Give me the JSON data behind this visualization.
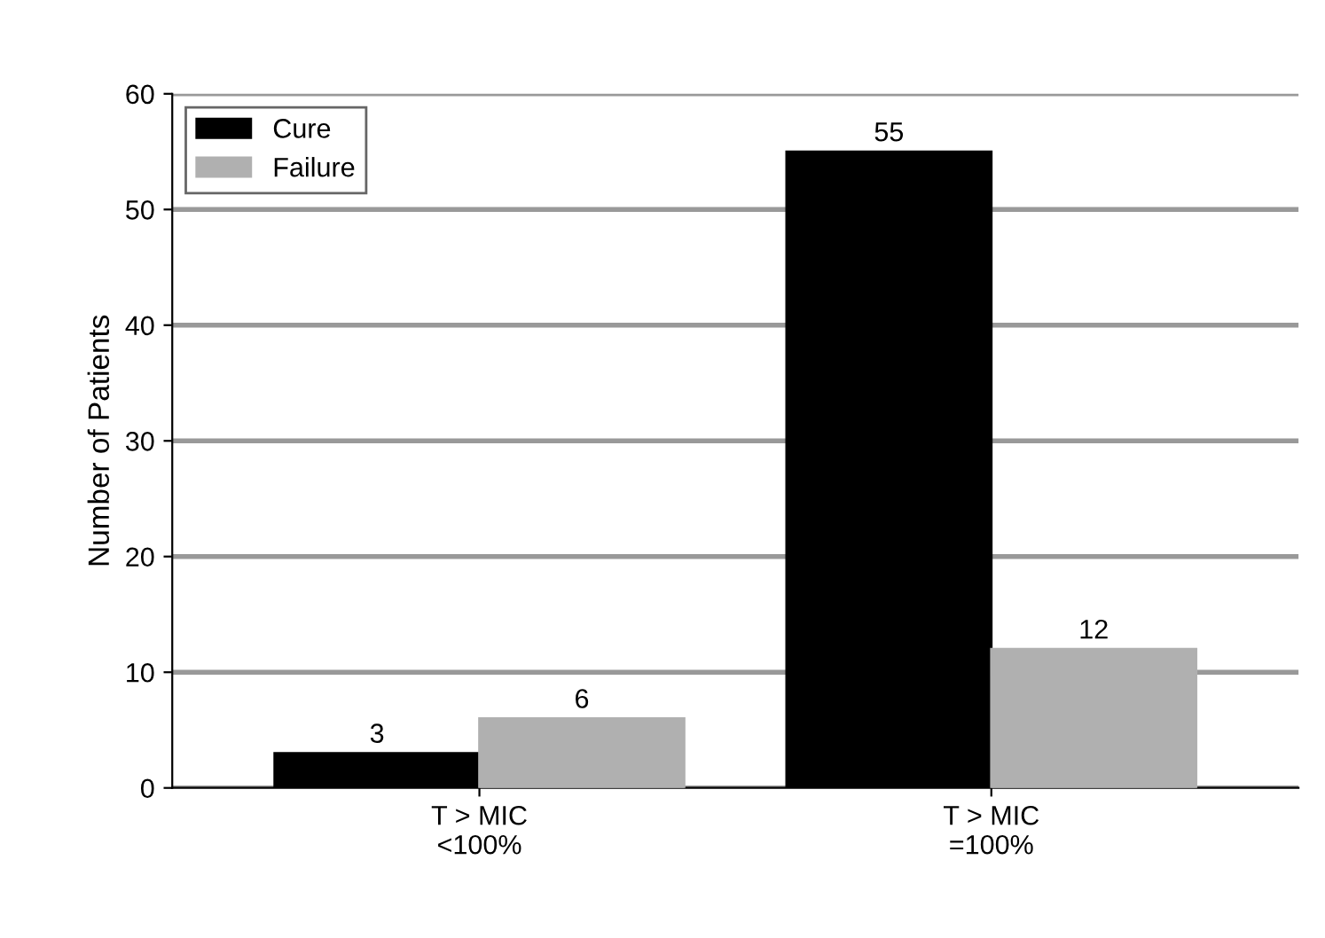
{
  "chart_data": {
    "type": "bar",
    "ylabel": "Number of Patients",
    "categories": [
      "T > MIC\n<100%",
      "T > MIC\n=100%"
    ],
    "series": [
      {
        "name": "Cure",
        "color": "#000000",
        "values": [
          3,
          55
        ]
      },
      {
        "name": "Failure",
        "color": "#b0b0b0",
        "values": [
          6,
          12
        ]
      }
    ],
    "ylim": [
      0,
      60
    ],
    "yticks": [
      0,
      10,
      20,
      30,
      40,
      50,
      60
    ],
    "grid": "y",
    "legend": "top left",
    "data_labels": true
  }
}
